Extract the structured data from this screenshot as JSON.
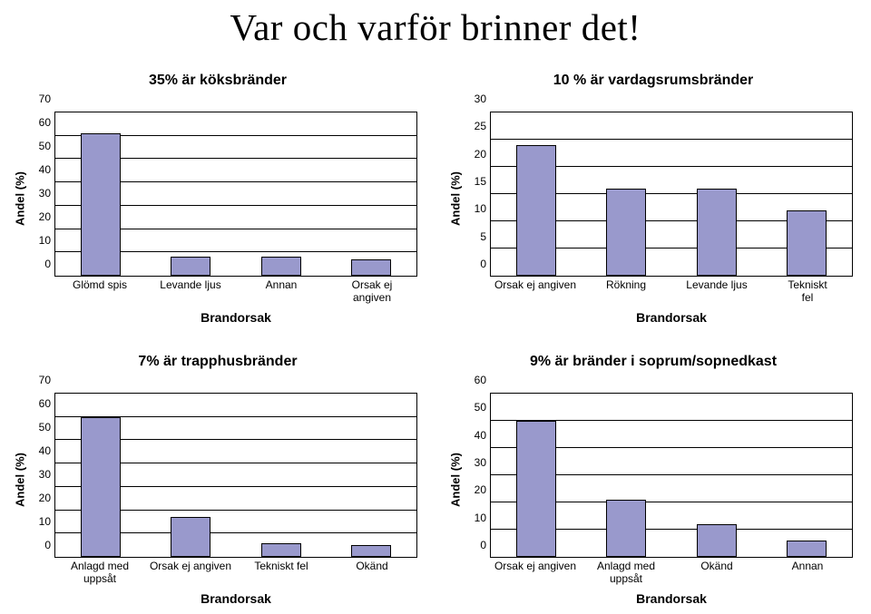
{
  "main_title": "Var och varför brinner det!",
  "charts": [
    {
      "title": "35% är köksbränder",
      "ylabel": "Andel (%)",
      "xlabel": "Brandorsak",
      "ylim": [
        0,
        70
      ],
      "ytick_step": 10,
      "bar_color": "#9999cc",
      "border_color": "#000000",
      "bar_width": 0.44,
      "categories": [
        "Glömd spis",
        "Levande ljus",
        "Annan",
        "Orsak ej angiven"
      ],
      "values": [
        61,
        8,
        8,
        7
      ]
    },
    {
      "title": "10 % är vardagsrumsbränder",
      "ylabel": "Andel (%)",
      "xlabel": "Brandorsak",
      "ylim": [
        0,
        30
      ],
      "ytick_step": 5,
      "bar_color": "#9999cc",
      "border_color": "#000000",
      "bar_width": 0.44,
      "categories": [
        "Orsak ej angiven",
        "Rökning",
        "Levande ljus",
        "Tekniskt fel"
      ],
      "values": [
        24,
        16,
        16,
        12
      ]
    },
    {
      "title": "7% är trapphusbränder",
      "ylabel": "Andel (%)",
      "xlabel": "Brandorsak",
      "ylim": [
        0,
        70
      ],
      "ytick_step": 10,
      "bar_color": "#9999cc",
      "border_color": "#000000",
      "bar_width": 0.44,
      "categories": [
        "Anlagd med\nuppsåt",
        "Orsak ej angiven",
        "Tekniskt fel",
        "Okänd"
      ],
      "values": [
        60,
        17,
        6,
        5
      ]
    },
    {
      "title": "9% är bränder i soprum/sopnedkast",
      "ylabel": "Andel (%)",
      "xlabel": "Brandorsak",
      "ylim": [
        0,
        60
      ],
      "ytick_step": 10,
      "bar_color": "#9999cc",
      "border_color": "#000000",
      "bar_width": 0.44,
      "categories": [
        "Orsak ej angiven",
        "Anlagd med\nuppsåt",
        "Okänd",
        "Annan"
      ],
      "values": [
        50,
        21,
        12,
        6
      ]
    }
  ]
}
